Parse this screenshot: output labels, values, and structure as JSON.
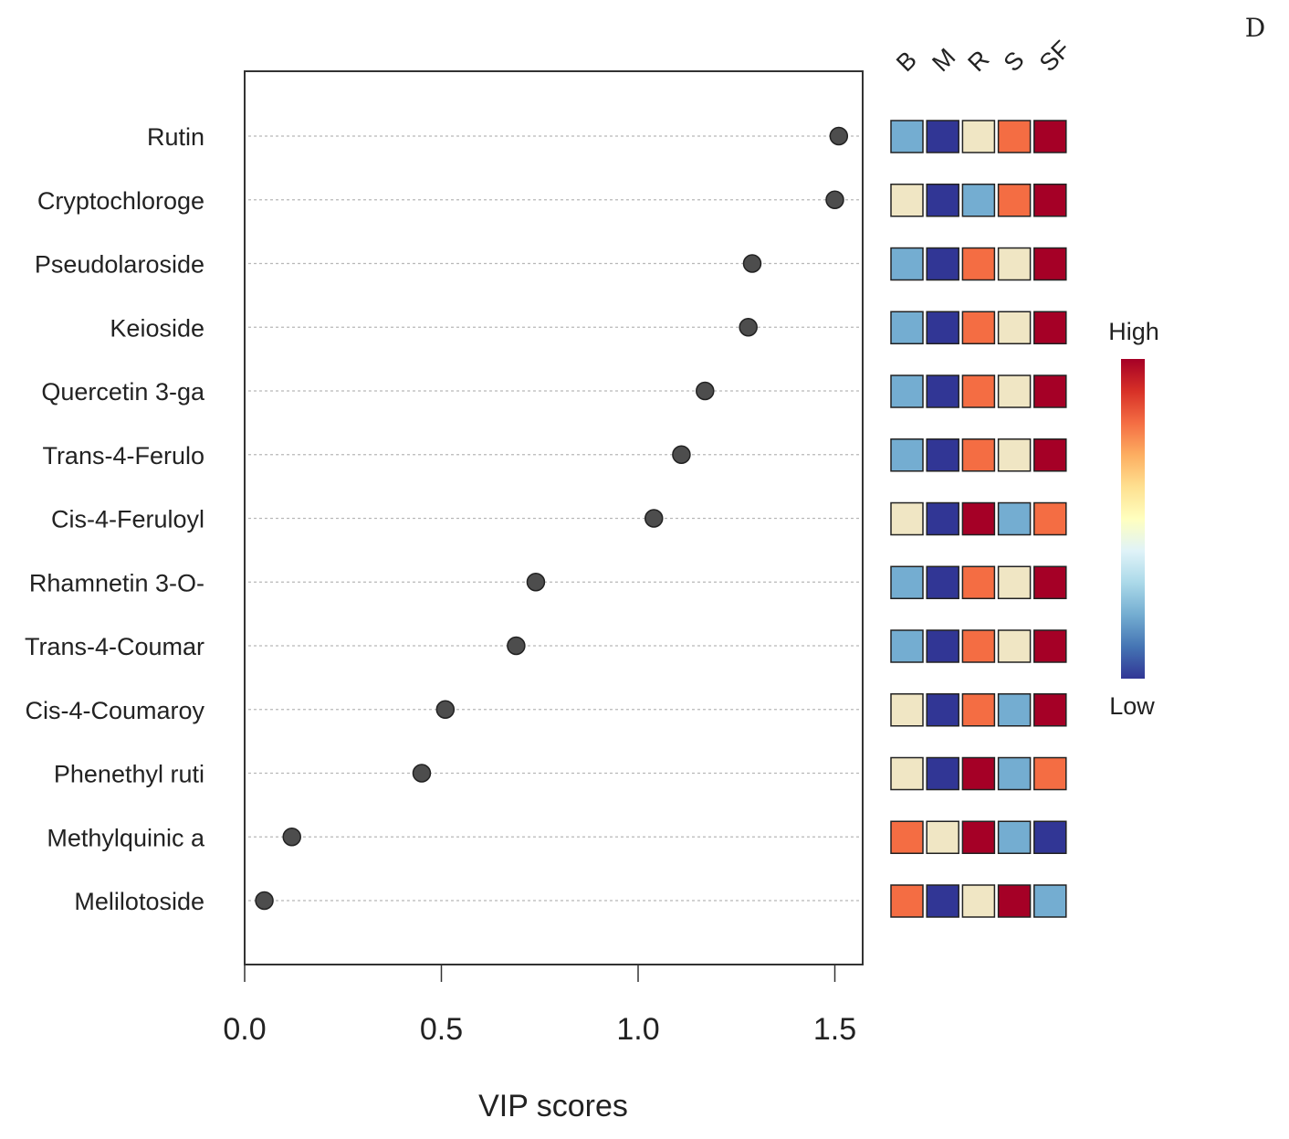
{
  "panel_label": "D",
  "chart_data": {
    "type": "scatter",
    "subtype": "VIP dot plot with group heatmap",
    "xlabel": "VIP scores",
    "xlim": [
      0,
      1.57
    ],
    "xticks": [
      "0.0",
      "0.5",
      "1.0",
      "1.5"
    ],
    "xtick_values": [
      0,
      0.5,
      1.0,
      1.5
    ],
    "features": [
      "Rutin",
      "Cryptochloroge",
      "Pseudolaroside",
      "Keioside",
      "Quercetin 3-ga",
      "Trans-4-Ferulo",
      "Cis-4-Feruloyl",
      "Rhamnetin 3-O-",
      "Trans-4-Coumar",
      "Cis-4-Coumaroy",
      "Phenethyl ruti",
      "Methylquinic a",
      "Melilotoside"
    ],
    "values": [
      1.51,
      1.5,
      1.29,
      1.28,
      1.17,
      1.11,
      1.04,
      0.74,
      0.69,
      0.51,
      0.45,
      0.12,
      0.05
    ],
    "groups": [
      "B",
      "M",
      "R",
      "S",
      "SF"
    ],
    "heatmap_levels": [
      [
        2,
        1,
        3,
        4,
        5
      ],
      [
        3,
        1,
        2,
        4,
        5
      ],
      [
        2,
        1,
        4,
        3,
        5
      ],
      [
        2,
        1,
        4,
        3,
        5
      ],
      [
        2,
        1,
        4,
        3,
        5
      ],
      [
        2,
        1,
        4,
        3,
        5
      ],
      [
        3,
        1,
        5,
        2,
        4
      ],
      [
        2,
        1,
        4,
        3,
        5
      ],
      [
        2,
        1,
        4,
        3,
        5
      ],
      [
        3,
        1,
        4,
        2,
        5
      ],
      [
        3,
        1,
        5,
        2,
        4
      ],
      [
        4,
        3,
        5,
        2,
        1
      ],
      [
        4,
        1,
        3,
        5,
        2
      ]
    ],
    "level_colors": {
      "1": "#313695",
      "2": "#74add1",
      "3": "#f0e6c4",
      "4": "#f46d43",
      "5": "#a50026"
    },
    "dot_color": "#4d4d4d",
    "legend": {
      "high_label": "High",
      "low_label": "Low",
      "gradient": [
        "#313695",
        "#4575b4",
        "#74add1",
        "#abd9e9",
        "#e0f3f8",
        "#ffffbf",
        "#fee090",
        "#fdae61",
        "#f46d43",
        "#d73027",
        "#a50026"
      ]
    }
  }
}
